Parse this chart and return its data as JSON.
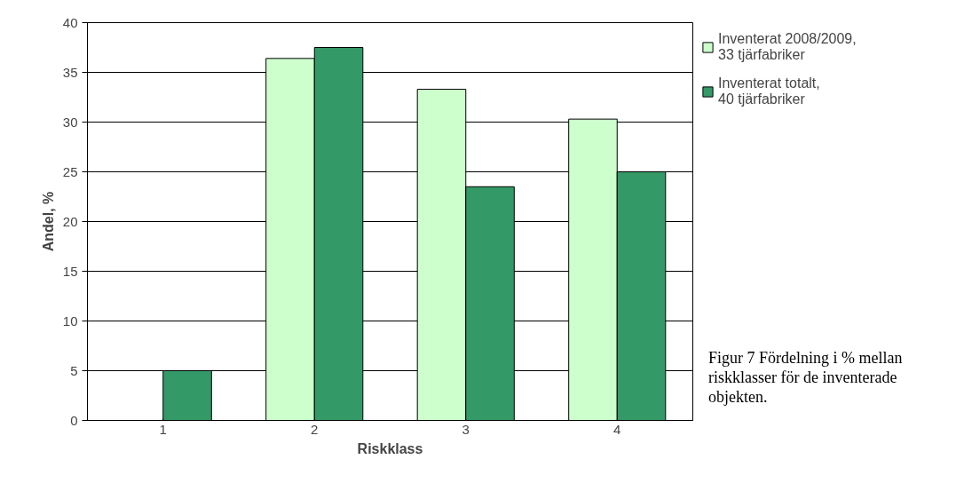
{
  "chart_data": {
    "type": "bar",
    "xlabel": "Riskklass",
    "ylabel": "Andel, %",
    "categories": [
      "1",
      "2",
      "3",
      "4"
    ],
    "series": [
      {
        "name": "Inventerat 2008/2009, 33 tjärfabriker",
        "color": "#ccffcc",
        "values": [
          null,
          36.4,
          33.3,
          30.3
        ]
      },
      {
        "name": "Inventerat totalt, 40 tjärfabriker",
        "color": "#339966",
        "values": [
          5,
          37.5,
          23.5,
          25
        ]
      }
    ],
    "ylim": [
      0,
      40
    ],
    "yticks": [
      0,
      5,
      10,
      15,
      20,
      25,
      30,
      35,
      40
    ],
    "grid": "y",
    "legend": "top right",
    "annotations": [
      "Figur 7 Fördelning i % mellan riskklasser för de inventerade objekten."
    ]
  }
}
